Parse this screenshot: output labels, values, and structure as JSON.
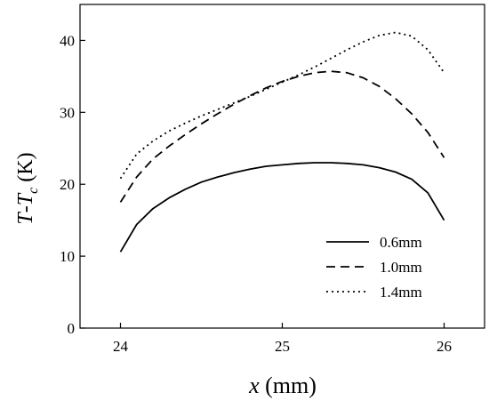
{
  "chart_data": {
    "type": "line",
    "xlabel": {
      "var": "x",
      "unit": " (mm)"
    },
    "ylabel": {
      "t": "T",
      "dash": "-",
      "t2": "T",
      "sub": "c",
      "unit": " (K)"
    },
    "xlim": [
      23.75,
      26.25
    ],
    "ylim": [
      0,
      45
    ],
    "xticks": [
      24,
      25,
      26
    ],
    "yticks": [
      0,
      10,
      20,
      30,
      40
    ],
    "grid": false,
    "legend_position": "bottom-right",
    "series": [
      {
        "name": "0.6mm",
        "style": "solid",
        "x": [
          24.0,
          24.1,
          24.2,
          24.3,
          24.4,
          24.5,
          24.6,
          24.7,
          24.8,
          24.9,
          25.0,
          25.1,
          25.2,
          25.3,
          25.4,
          25.5,
          25.6,
          25.7,
          25.8,
          25.9,
          26.0
        ],
        "y": [
          10.6,
          14.4,
          16.6,
          18.1,
          19.3,
          20.3,
          21.0,
          21.6,
          22.1,
          22.5,
          22.7,
          22.9,
          23.0,
          23.0,
          22.9,
          22.7,
          22.3,
          21.7,
          20.7,
          18.8,
          15.0
        ]
      },
      {
        "name": "1.0mm",
        "style": "dashed",
        "x": [
          24.0,
          24.1,
          24.2,
          24.3,
          24.4,
          24.5,
          24.6,
          24.7,
          24.8,
          24.9,
          25.0,
          25.1,
          25.2,
          25.3,
          25.4,
          25.5,
          25.6,
          25.7,
          25.8,
          25.9,
          26.0
        ],
        "y": [
          17.5,
          21.0,
          23.5,
          25.3,
          26.9,
          28.4,
          29.8,
          31.1,
          32.3,
          33.4,
          34.3,
          35.0,
          35.5,
          35.7,
          35.5,
          34.8,
          33.6,
          31.9,
          29.8,
          27.2,
          23.7
        ]
      },
      {
        "name": "1.4mm",
        "style": "dotted",
        "x": [
          24.0,
          24.1,
          24.2,
          24.3,
          24.4,
          24.5,
          24.6,
          24.7,
          24.8,
          24.9,
          25.0,
          25.1,
          25.2,
          25.3,
          25.4,
          25.5,
          25.6,
          25.7,
          25.8,
          25.9,
          26.0
        ],
        "y": [
          20.8,
          24.2,
          26.0,
          27.4,
          28.5,
          29.5,
          30.4,
          31.3,
          32.2,
          33.2,
          34.2,
          35.2,
          36.3,
          37.5,
          38.7,
          39.8,
          40.7,
          41.1,
          40.6,
          38.7,
          35.5
        ]
      }
    ]
  }
}
